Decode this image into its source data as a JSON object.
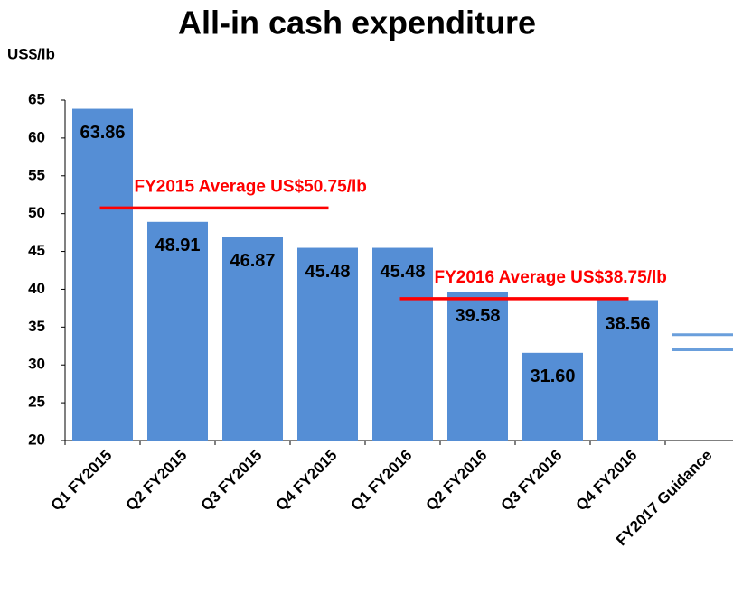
{
  "chart_data": {
    "type": "bar",
    "title": "All-in cash expenditure",
    "y_label": "US$/lb",
    "categories": [
      "Q1 FY2015",
      "Q2 FY2015",
      "Q3 FY2015",
      "Q4 FY2015",
      "Q1 FY2016",
      "Q2 FY2016",
      "Q3 FY2016",
      "Q4 FY2016",
      "FY2017 Guidance"
    ],
    "values": [
      63.86,
      48.91,
      46.87,
      45.48,
      45.48,
      39.58,
      31.6,
      38.56,
      null
    ],
    "value_labels": [
      "63.86",
      "48.91",
      "46.87",
      "45.48",
      "45.48",
      "39.58",
      "31.60",
      "38.56",
      null
    ],
    "color": "#558ed5",
    "guidance": {
      "values": [
        34,
        32
      ],
      "color": "#6a9fdc"
    },
    "annotations": [
      {
        "text": "FY2015 Average US$50.75/lb",
        "value": 50.75,
        "color": "#ff0000"
      },
      {
        "text": "FY2016 Average US$38.75/lb",
        "value": 38.75,
        "color": "#ff0000"
      }
    ],
    "ylim": [
      20,
      65
    ],
    "yticks": [
      20,
      25,
      30,
      35,
      40,
      45,
      50,
      55,
      60,
      65
    ],
    "grid": false
  }
}
